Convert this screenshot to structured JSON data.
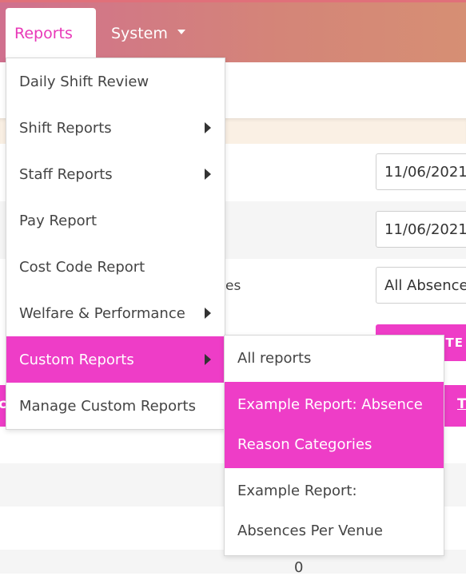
{
  "nav": {
    "reports_label": "Reports",
    "system_label": "System"
  },
  "form": {
    "from_date": "11/06/2021",
    "to_date": "11/06/2021",
    "absence_label_fragment": "es",
    "absence_select": "All Absences",
    "generate_fragment": "TE"
  },
  "table": {
    "header_left_fragment": "c",
    "header_right_fragment": "T",
    "cell_value": "0"
  },
  "reports_menu": {
    "items": [
      {
        "label": "Daily Shift Review",
        "submenu": false
      },
      {
        "label": "Shift Reports",
        "submenu": true
      },
      {
        "label": "Staff Reports",
        "submenu": true
      },
      {
        "label": "Pay Report",
        "submenu": false
      },
      {
        "label": "Cost Code Report",
        "submenu": false
      },
      {
        "label": "Welfare & Performance",
        "submenu": true
      },
      {
        "label": "Custom Reports",
        "submenu": true
      },
      {
        "label": "Manage Custom Reports",
        "submenu": false
      }
    ]
  },
  "custom_reports_submenu": {
    "all_reports": "All reports",
    "item_1_line_1": "Example Report: Absence",
    "item_1_line_2": "Reason Categories",
    "item_2_line_1": "Example Report:",
    "item_2_line_2": "Absences Per Venue"
  },
  "colors": {
    "accent": "#ee3dc7",
    "nav_gradient_start": "#d0708e",
    "nav_gradient_end": "#d68f74"
  }
}
